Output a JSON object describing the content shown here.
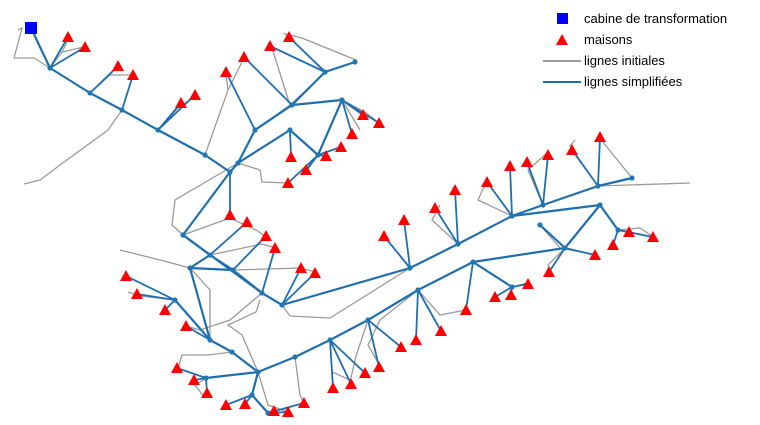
{
  "colors": {
    "substation": "#0000ff",
    "house": "#ff0000",
    "initial_line": "#9a9a9a",
    "simplified_line": "#1f6fb0",
    "node": "#1f77b4"
  },
  "legend": {
    "substation_label": "cabine de transformation",
    "house_label": "maisons",
    "initial_lines_label": "lignes initiales",
    "simplified_lines_label": "lignes simplifiées"
  },
  "network": {
    "substation": [
      31,
      28
    ],
    "junctions": [
      [
        50,
        68
      ],
      [
        90,
        93
      ],
      [
        122,
        110
      ],
      [
        158,
        130
      ],
      [
        205,
        155
      ],
      [
        230,
        172
      ],
      [
        238,
        163
      ],
      [
        255,
        130
      ],
      [
        292,
        105
      ],
      [
        325,
        72
      ],
      [
        355,
        62
      ],
      [
        342,
        100
      ],
      [
        318,
        155
      ],
      [
        290,
        130
      ],
      [
        183,
        235
      ],
      [
        210,
        255
      ],
      [
        233,
        270
      ],
      [
        262,
        293
      ],
      [
        282,
        305
      ],
      [
        410,
        268
      ],
      [
        458,
        244
      ],
      [
        512,
        216
      ],
      [
        543,
        205
      ],
      [
        598,
        186
      ],
      [
        632,
        178
      ],
      [
        600,
        205
      ],
      [
        618,
        230
      ],
      [
        565,
        248
      ],
      [
        540,
        225
      ],
      [
        473,
        262
      ],
      [
        512,
        287
      ],
      [
        418,
        290
      ],
      [
        368,
        320
      ],
      [
        330,
        340
      ],
      [
        295,
        357
      ],
      [
        258,
        372
      ],
      [
        232,
        352
      ],
      [
        210,
        340
      ],
      [
        190,
        268
      ],
      [
        175,
        300
      ],
      [
        206,
        378
      ],
      [
        252,
        395
      ],
      [
        268,
        413
      ]
    ],
    "houses": [
      [
        68,
        37
      ],
      [
        85,
        47
      ],
      [
        118,
        66
      ],
      [
        133,
        75
      ],
      [
        226,
        72
      ],
      [
        244,
        57
      ],
      [
        270,
        46
      ],
      [
        289,
        37
      ],
      [
        181,
        103
      ],
      [
        195,
        95
      ],
      [
        291,
        157
      ],
      [
        306,
        170
      ],
      [
        288,
        183
      ],
      [
        326,
        156
      ],
      [
        341,
        147
      ],
      [
        352,
        134
      ],
      [
        363,
        115
      ],
      [
        379,
        123
      ],
      [
        126,
        276
      ],
      [
        137,
        294
      ],
      [
        165,
        310
      ],
      [
        186,
        326
      ],
      [
        230,
        215
      ],
      [
        247,
        222
      ],
      [
        266,
        236
      ],
      [
        275,
        248
      ],
      [
        301,
        268
      ],
      [
        315,
        273
      ],
      [
        384,
        236
      ],
      [
        404,
        220
      ],
      [
        435,
        208
      ],
      [
        455,
        190
      ],
      [
        487,
        182
      ],
      [
        510,
        166
      ],
      [
        527,
        162
      ],
      [
        548,
        155
      ],
      [
        572,
        150
      ],
      [
        600,
        137
      ],
      [
        629,
        232
      ],
      [
        653,
        237
      ],
      [
        613,
        245
      ],
      [
        595,
        255
      ],
      [
        549,
        272
      ],
      [
        528,
        284
      ],
      [
        511,
        295
      ],
      [
        495,
        297
      ],
      [
        466,
        310
      ],
      [
        441,
        331
      ],
      [
        416,
        340
      ],
      [
        401,
        347
      ],
      [
        379,
        367
      ],
      [
        365,
        373
      ],
      [
        351,
        384
      ],
      [
        333,
        388
      ],
      [
        304,
        403
      ],
      [
        288,
        412
      ],
      [
        274,
        411
      ],
      [
        245,
        404
      ],
      [
        226,
        405
      ],
      [
        207,
        393
      ],
      [
        194,
        380
      ],
      [
        177,
        368
      ]
    ]
  }
}
